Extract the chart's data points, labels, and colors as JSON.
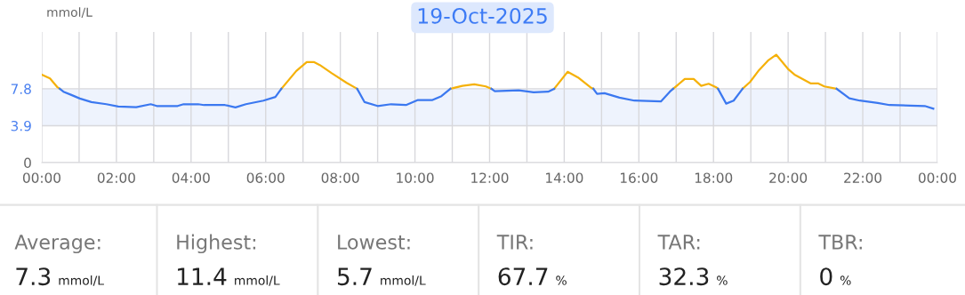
{
  "chart_data": [
    {
      "type": "line",
      "title": "19-Oct-2025",
      "ylabel": "mmol/L",
      "x": [
        0.0,
        0.22,
        0.42,
        0.48,
        0.58,
        0.78,
        1.02,
        1.33,
        1.73,
        2.05,
        2.53,
        2.92,
        3.08,
        3.64,
        3.8,
        4.19,
        4.35,
        4.91,
        5.19,
        5.47,
        5.94,
        6.26,
        6.42,
        6.82,
        7.1,
        7.29,
        7.45,
        7.77,
        8.17,
        8.45,
        8.65,
        9.0,
        9.36,
        9.76,
        10.08,
        10.47,
        10.71,
        10.95,
        11.27,
        11.59,
        11.9,
        12.05,
        12.14,
        12.78,
        13.18,
        13.57,
        13.73,
        14.09,
        14.37,
        14.73,
        14.78,
        14.88,
        15.08,
        15.48,
        15.88,
        16.59,
        16.83,
        16.92,
        17.23,
        17.47,
        17.67,
        17.87,
        18.07,
        18.12,
        18.34,
        18.54,
        18.78,
        18.98,
        19.22,
        19.46,
        19.68,
        20.01,
        20.17,
        20.61,
        20.81,
        20.97,
        21.3,
        21.64,
        21.92,
        22.4,
        22.72,
        23.27,
        23.66,
        23.89
      ],
      "series": [
        {
          "color": "#f5b10a",
          "values": [
            9.3,
            8.9,
            7.96,
            7.8,
            null,
            null,
            null,
            null,
            null,
            null,
            null,
            null,
            null,
            null,
            null,
            null,
            null,
            null,
            null,
            null,
            null,
            null,
            7.8,
            9.68,
            10.62,
            10.62,
            10.31,
            9.45,
            8.43,
            7.8,
            null,
            null,
            null,
            null,
            null,
            null,
            null,
            7.8,
            8.11,
            8.27,
            8.05,
            7.8,
            null,
            null,
            null,
            null,
            7.8,
            9.59,
            8.99,
            7.87,
            7.8,
            null,
            null,
            null,
            null,
            null,
            null,
            7.8,
            8.83,
            8.83,
            8.11,
            8.33,
            7.96,
            7.8,
            null,
            null,
            7.8,
            8.52,
            9.77,
            10.78,
            11.4,
            9.84,
            9.3,
            8.36,
            8.36,
            8.05,
            7.8,
            null,
            null,
            null,
            null,
            null,
            null,
            null
          ]
        },
        {
          "color": "#3b78f0",
          "values": [
            null,
            null,
            null,
            7.8,
            7.49,
            7.17,
            6.77,
            6.39,
            6.17,
            5.92,
            5.86,
            6.17,
            5.98,
            5.98,
            6.17,
            6.17,
            6.08,
            6.08,
            5.83,
            6.17,
            6.55,
            6.93,
            7.8,
            null,
            null,
            null,
            null,
            null,
            null,
            7.8,
            6.39,
            5.98,
            6.17,
            6.08,
            6.61,
            6.61,
            7.02,
            7.8,
            null,
            null,
            null,
            7.8,
            7.55,
            7.64,
            7.42,
            7.49,
            7.8,
            null,
            null,
            null,
            7.8,
            7.27,
            7.33,
            6.86,
            6.55,
            6.46,
            7.49,
            7.8,
            null,
            null,
            null,
            null,
            null,
            7.8,
            6.23,
            6.55,
            7.8,
            null,
            null,
            null,
            null,
            null,
            null,
            null,
            null,
            null,
            7.8,
            6.8,
            6.55,
            6.3,
            6.08,
            6.02,
            5.98,
            5.7
          ]
        }
      ],
      "xlim": [
        0,
        24
      ],
      "xticks": [
        {
          "value": 0,
          "label": "00:00"
        },
        {
          "value": 1,
          "label": null
        },
        {
          "value": 2,
          "label": "02:00"
        },
        {
          "value": 3,
          "label": null
        },
        {
          "value": 4,
          "label": "04:00"
        },
        {
          "value": 5,
          "label": null
        },
        {
          "value": 6,
          "label": "06:00"
        },
        {
          "value": 7,
          "label": null
        },
        {
          "value": 8,
          "label": "08:00"
        },
        {
          "value": 9,
          "label": null
        },
        {
          "value": 10,
          "label": "10:00"
        },
        {
          "value": 11,
          "label": null
        },
        {
          "value": 12,
          "label": "12:00"
        },
        {
          "value": 13,
          "label": null
        },
        {
          "value": 14,
          "label": "14:00"
        },
        {
          "value": 15,
          "label": null
        },
        {
          "value": 16,
          "label": "16:00"
        },
        {
          "value": 17,
          "label": null
        },
        {
          "value": 18,
          "label": "18:00"
        },
        {
          "value": 19,
          "label": null
        },
        {
          "value": 20,
          "label": "20:00"
        },
        {
          "value": 21,
          "label": null
        },
        {
          "value": 22,
          "label": "22:00"
        },
        {
          "value": 23,
          "label": null
        },
        {
          "value": 24,
          "label": "00:00"
        }
      ],
      "ylim": [
        0,
        13.8
      ],
      "yticks": [
        0,
        3.9,
        7.8
      ],
      "bands": [
        {
          "axis": "y",
          "from": 3.9,
          "to": 7.8,
          "color": "#eef3fd"
        }
      ],
      "grid": true,
      "marker": "none",
      "line_style": "solid"
    },
    {
      "type": "other",
      "annotations": [
        "Average:",
        "7.3",
        "mmol/L",
        "Highest:",
        "11.4",
        "mmol/L",
        "Lowest:",
        "5.7",
        "mmol/L",
        "TIR:",
        "67.7",
        "%",
        "TAR:",
        "32.3",
        "%",
        "TBR:",
        "0",
        "%"
      ]
    }
  ]
}
